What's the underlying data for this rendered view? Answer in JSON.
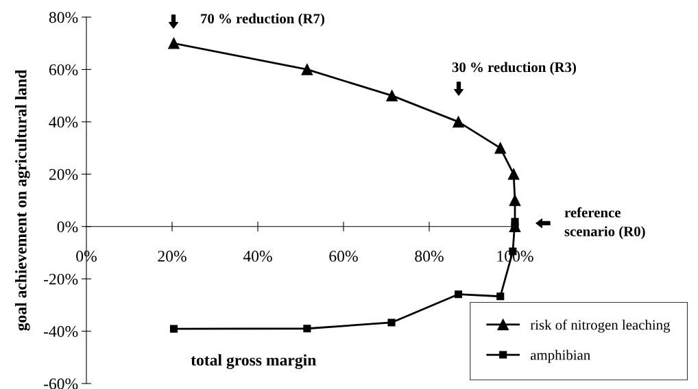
{
  "chart_data": {
    "type": "line",
    "xlabel": "total gross margin",
    "ylabel": "goal achievement on agricultural land",
    "xlim": [
      0,
      100
    ],
    "ylim": [
      -60,
      80
    ],
    "xticks": [
      {
        "value": 0,
        "label": "0%"
      },
      {
        "value": 20,
        "label": "20%"
      },
      {
        "value": 40,
        "label": "40%"
      },
      {
        "value": 60,
        "label": "60%"
      },
      {
        "value": 80,
        "label": "80%"
      },
      {
        "value": 100,
        "label": "100%"
      }
    ],
    "yticks": [
      {
        "value": -60,
        "label": "-60%"
      },
      {
        "value": -40,
        "label": "-40%"
      },
      {
        "value": -20,
        "label": "-20%"
      },
      {
        "value": 0,
        "label": "0%"
      },
      {
        "value": 20,
        "label": "20%"
      },
      {
        "value": 40,
        "label": "40%"
      },
      {
        "value": 60,
        "label": "60%"
      },
      {
        "value": 80,
        "label": "80%"
      }
    ],
    "series": [
      {
        "name": "risk of nitrogen leaching",
        "color": "#000000",
        "marker": "triangle",
        "x": [
          20.4,
          51.5,
          71.3,
          86.8,
          96.6,
          99.7,
          100,
          100
        ],
        "values": [
          70,
          60,
          50,
          40,
          30,
          20,
          10,
          0
        ]
      },
      {
        "name": "amphibian",
        "color": "#000000",
        "marker": "square",
        "x": [
          20.4,
          51.5,
          71.2,
          86.8,
          96.6,
          99.5,
          100,
          100
        ],
        "values": [
          -39.1,
          -39,
          -36.7,
          -25.9,
          -26.7,
          -9.5,
          1.8,
          0
        ]
      }
    ],
    "annotations": [
      "70 % reduction (R7)",
      "30 % reduction (R3)",
      "reference\nscenario (R0)"
    ],
    "legend": "bottom right",
    "grid": false,
    "line_style": "solid"
  }
}
